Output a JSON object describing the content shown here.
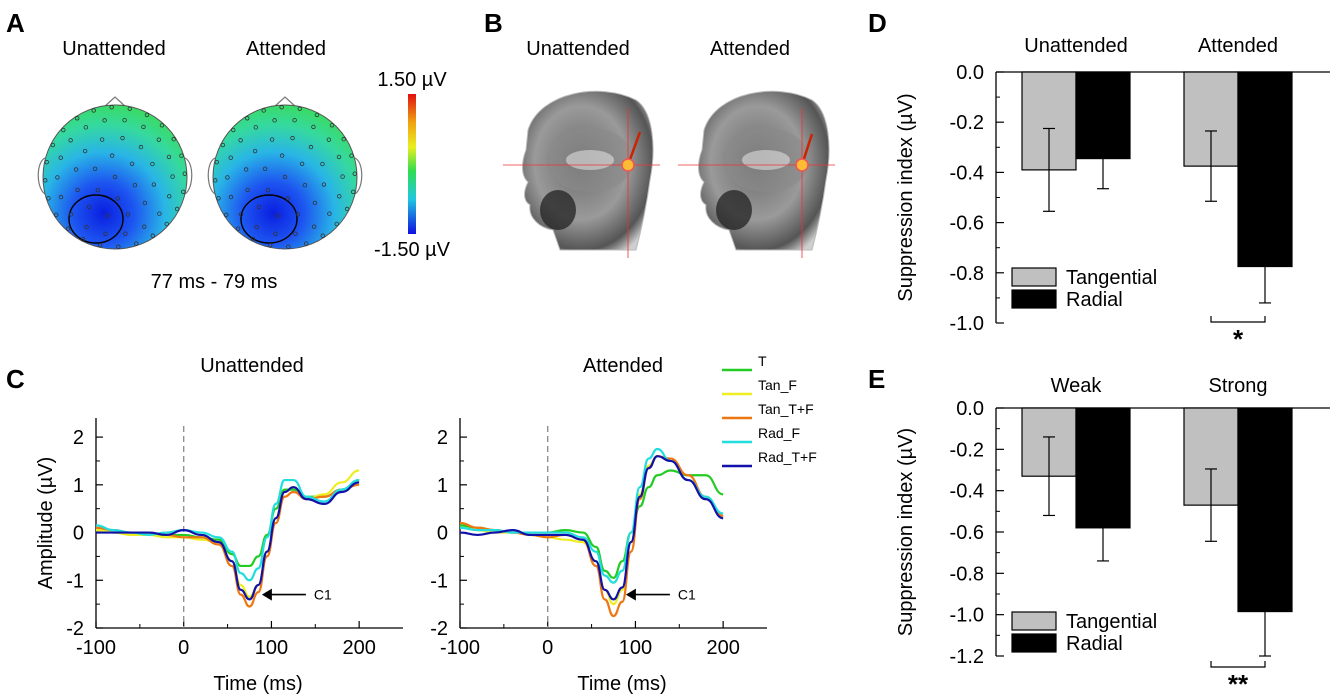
{
  "panels": {
    "A": {
      "letter": "A",
      "cond_left": "Unattended",
      "cond_right": "Attended",
      "time_window": "77 ms - 79 ms",
      "colorbar_max": "1.50 µV",
      "colorbar_min": "-1.50 µV"
    },
    "B": {
      "letter": "B",
      "cond_left": "Unattended",
      "cond_right": "Attended"
    },
    "C": {
      "letter": "C"
    },
    "D": {
      "letter": "D"
    },
    "E": {
      "letter": "E"
    }
  },
  "chart_data": [
    {
      "id": "C-unattended",
      "type": "line",
      "title": "Unattended",
      "xlabel": "Time (ms)",
      "ylabel": "Amplitude (µV)",
      "xlim": [
        -100,
        250
      ],
      "ylim": [
        -2,
        2.4
      ],
      "xticks": [
        -100,
        0,
        100,
        200
      ],
      "yticks": [
        -2,
        -1,
        0,
        1,
        2
      ],
      "annotation": "C1",
      "series": [
        {
          "name": "T",
          "color": "#22cc22",
          "x": [
            -100,
            -80,
            -60,
            -40,
            -20,
            0,
            20,
            40,
            55,
            65,
            75,
            85,
            95,
            105,
            115,
            125,
            140,
            160,
            180,
            200
          ],
          "y": [
            0.05,
            0.0,
            0.0,
            -0.05,
            -0.05,
            -0.05,
            -0.1,
            -0.15,
            -0.45,
            -0.7,
            -0.7,
            -0.5,
            -0.05,
            0.5,
            0.9,
            0.9,
            0.75,
            0.75,
            0.9,
            1.1
          ]
        },
        {
          "name": "Tan_F",
          "color": "#eeee22",
          "x": [
            -100,
            -80,
            -60,
            -40,
            -20,
            0,
            20,
            40,
            55,
            65,
            75,
            85,
            95,
            105,
            115,
            125,
            140,
            160,
            180,
            200
          ],
          "y": [
            0.05,
            0.0,
            -0.05,
            -0.05,
            -0.1,
            -0.1,
            -0.15,
            -0.2,
            -0.6,
            -1.1,
            -1.35,
            -1.1,
            -0.4,
            0.3,
            0.85,
            0.95,
            0.7,
            0.8,
            1.05,
            1.3
          ]
        },
        {
          "name": "Tan_T+F",
          "color": "#ee7711",
          "x": [
            -100,
            -80,
            -60,
            -40,
            -20,
            0,
            20,
            40,
            55,
            65,
            75,
            85,
            95,
            105,
            115,
            125,
            140,
            160,
            180,
            200
          ],
          "y": [
            0.1,
            0.05,
            0.0,
            0.0,
            -0.05,
            -0.1,
            -0.1,
            -0.25,
            -0.7,
            -1.3,
            -1.55,
            -1.25,
            -0.5,
            0.2,
            0.75,
            0.85,
            0.7,
            0.75,
            0.9,
            1.0
          ]
        },
        {
          "name": "Rad_F",
          "color": "#22dddd",
          "x": [
            -100,
            -80,
            -60,
            -40,
            -20,
            0,
            20,
            40,
            55,
            65,
            75,
            85,
            95,
            105,
            115,
            125,
            140,
            160,
            180,
            200
          ],
          "y": [
            0.15,
            0.05,
            0.0,
            -0.05,
            0.0,
            0.05,
            0.0,
            -0.1,
            -0.4,
            -0.85,
            -1.0,
            -0.75,
            -0.1,
            0.6,
            1.1,
            1.1,
            0.75,
            0.65,
            0.9,
            1.1
          ]
        },
        {
          "name": "Rad_T+F",
          "color": "#1111aa",
          "x": [
            -100,
            -80,
            -60,
            -40,
            -20,
            0,
            20,
            40,
            55,
            65,
            75,
            85,
            95,
            105,
            115,
            125,
            140,
            160,
            180,
            200
          ],
          "y": [
            0.0,
            0.0,
            0.0,
            0.0,
            -0.05,
            0.05,
            -0.05,
            -0.2,
            -0.6,
            -1.2,
            -1.4,
            -1.1,
            -0.4,
            0.3,
            0.85,
            0.95,
            0.7,
            0.6,
            0.85,
            1.05
          ]
        }
      ]
    },
    {
      "id": "C-attended",
      "type": "line",
      "title": "Attended",
      "xlabel": "Time (ms)",
      "ylabel": "",
      "xlim": [
        -100,
        250
      ],
      "ylim": [
        -2,
        2.4
      ],
      "xticks": [
        -100,
        0,
        100,
        200
      ],
      "yticks": [
        -2,
        -1,
        0,
        1,
        2
      ],
      "annotation": "C1",
      "series": [
        {
          "name": "T",
          "color": "#22cc22",
          "x": [
            -100,
            -80,
            -60,
            -40,
            -20,
            0,
            20,
            40,
            55,
            65,
            75,
            85,
            95,
            105,
            115,
            125,
            140,
            160,
            180,
            200
          ],
          "y": [
            0.15,
            0.1,
            0.05,
            0.0,
            0.0,
            0.0,
            0.05,
            0.0,
            -0.3,
            -0.8,
            -0.95,
            -0.6,
            0.0,
            0.55,
            0.95,
            1.2,
            1.3,
            1.2,
            1.2,
            0.8
          ]
        },
        {
          "name": "Tan_F",
          "color": "#eeee22",
          "x": [
            -100,
            -80,
            -60,
            -40,
            -20,
            0,
            20,
            40,
            55,
            65,
            75,
            85,
            95,
            105,
            115,
            125,
            140,
            160,
            180,
            200
          ],
          "y": [
            0.1,
            0.05,
            0.0,
            0.0,
            -0.05,
            -0.1,
            -0.15,
            -0.2,
            -0.6,
            -1.2,
            -1.5,
            -1.2,
            -0.2,
            0.8,
            1.4,
            1.6,
            1.5,
            1.1,
            0.7,
            0.35
          ]
        },
        {
          "name": "Tan_T+F",
          "color": "#ee7711",
          "x": [
            -100,
            -80,
            -60,
            -40,
            -20,
            0,
            20,
            40,
            55,
            65,
            75,
            85,
            95,
            105,
            115,
            125,
            140,
            160,
            180,
            200
          ],
          "y": [
            0.2,
            0.1,
            0.05,
            0.0,
            -0.05,
            -0.1,
            -0.05,
            -0.15,
            -0.7,
            -1.4,
            -1.75,
            -1.45,
            -0.4,
            0.7,
            1.35,
            1.6,
            1.55,
            1.2,
            0.75,
            0.35
          ]
        },
        {
          "name": "Rad_F",
          "color": "#22dddd",
          "x": [
            -100,
            -80,
            -60,
            -40,
            -20,
            0,
            20,
            40,
            55,
            65,
            75,
            85,
            95,
            105,
            115,
            125,
            140,
            160,
            180,
            200
          ],
          "y": [
            0.1,
            0.05,
            0.05,
            0.0,
            0.0,
            0.0,
            0.0,
            -0.1,
            -0.4,
            -0.9,
            -1.05,
            -0.8,
            0.0,
            0.95,
            1.55,
            1.75,
            1.5,
            1.1,
            0.75,
            0.4
          ]
        },
        {
          "name": "Rad_T+F",
          "color": "#1111aa",
          "x": [
            -100,
            -80,
            -60,
            -40,
            -20,
            0,
            20,
            40,
            55,
            65,
            75,
            85,
            95,
            105,
            115,
            125,
            140,
            160,
            180,
            200
          ],
          "y": [
            0.0,
            -0.05,
            0.0,
            0.05,
            -0.05,
            -0.05,
            -0.05,
            -0.15,
            -0.6,
            -1.2,
            -1.4,
            -1.15,
            -0.2,
            0.75,
            1.35,
            1.6,
            1.5,
            1.1,
            0.7,
            0.3
          ]
        }
      ]
    },
    {
      "id": "D",
      "type": "bar",
      "categories": [
        "Unattended",
        "Attended"
      ],
      "ylabel": "Suppression index (µV)",
      "ylim": [
        -1.0,
        0.0
      ],
      "yticks": [
        0.0,
        -0.2,
        -0.4,
        -0.6,
        -0.8,
        -1.0
      ],
      "tick_labels": [
        "0.0",
        "-0.2",
        "-0.4",
        "-0.6",
        "-0.8",
        "-1.0"
      ],
      "series": [
        {
          "name": "Tangential",
          "color": "#c0c0c0",
          "values": [
            -0.39,
            -0.375
          ],
          "errors": [
            0.165,
            0.14
          ]
        },
        {
          "name": "Radial",
          "color": "#000000",
          "values": [
            -0.345,
            -0.775
          ],
          "errors": [
            0.12,
            0.145
          ]
        }
      ],
      "significance": {
        "category": "Attended",
        "label": "*"
      },
      "legend": "bottom-left"
    },
    {
      "id": "E",
      "type": "bar",
      "categories": [
        "Weak",
        "Strong"
      ],
      "ylabel": "Suppression index (µV)",
      "ylim": [
        -1.2,
        0.0
      ],
      "yticks": [
        0.0,
        -0.2,
        -0.4,
        -0.6,
        -0.8,
        -1.0,
        -1.2
      ],
      "tick_labels": [
        "0.0",
        "-0.2",
        "-0.4",
        "-0.6",
        "-0.8",
        "-1.0",
        "-1.2"
      ],
      "series": [
        {
          "name": "Tangential",
          "color": "#c0c0c0",
          "values": [
            -0.33,
            -0.47
          ],
          "errors": [
            0.19,
            0.175
          ]
        },
        {
          "name": "Radial",
          "color": "#000000",
          "values": [
            -0.58,
            -0.985
          ],
          "errors": [
            0.16,
            0.215
          ]
        }
      ],
      "significance": {
        "category": "Strong",
        "label": "**"
      },
      "legend": "bottom-left"
    }
  ]
}
